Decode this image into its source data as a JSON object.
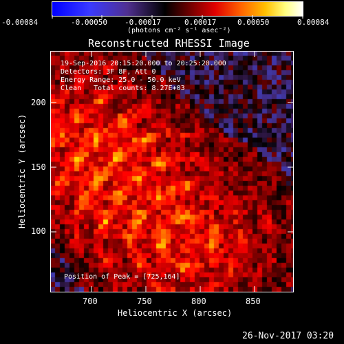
{
  "colorbar": {
    "ticks": [
      "-0.00084",
      "-0.00050",
      "-0.00017",
      "0.00017",
      "0.00050",
      "0.00084"
    ],
    "unit_label": "(photons cm⁻² s⁻¹ asec⁻²)"
  },
  "plot": {
    "title": "Reconstructed RHESSI Image",
    "xlabel": "Heliocentric X (arcsec)",
    "ylabel": "Heliocentric Y (arcsec)",
    "x_ticks": [
      "700",
      "750",
      "800",
      "850"
    ],
    "y_ticks": [
      "100",
      "150",
      "200"
    ],
    "annotations": [
      "19-Sep-2016 20:15:20.000 to 20:25:20.000",
      "Detectors: 3F 8F, Att 0",
      "Energy Range: 25.0 - 50.0 keV",
      "Clean   Total counts: 8.27E+03"
    ],
    "peak_label": "Position of Peak = [725,164]"
  },
  "footer": {
    "timestamp": "26-Nov-2017 03:20"
  },
  "colors": {
    "palette": [
      "#0000ff",
      "#4040c0",
      "#402060",
      "#000000",
      "#800000",
      "#ff0000",
      "#ff8000",
      "#ffff00",
      "#ffffff"
    ]
  }
}
